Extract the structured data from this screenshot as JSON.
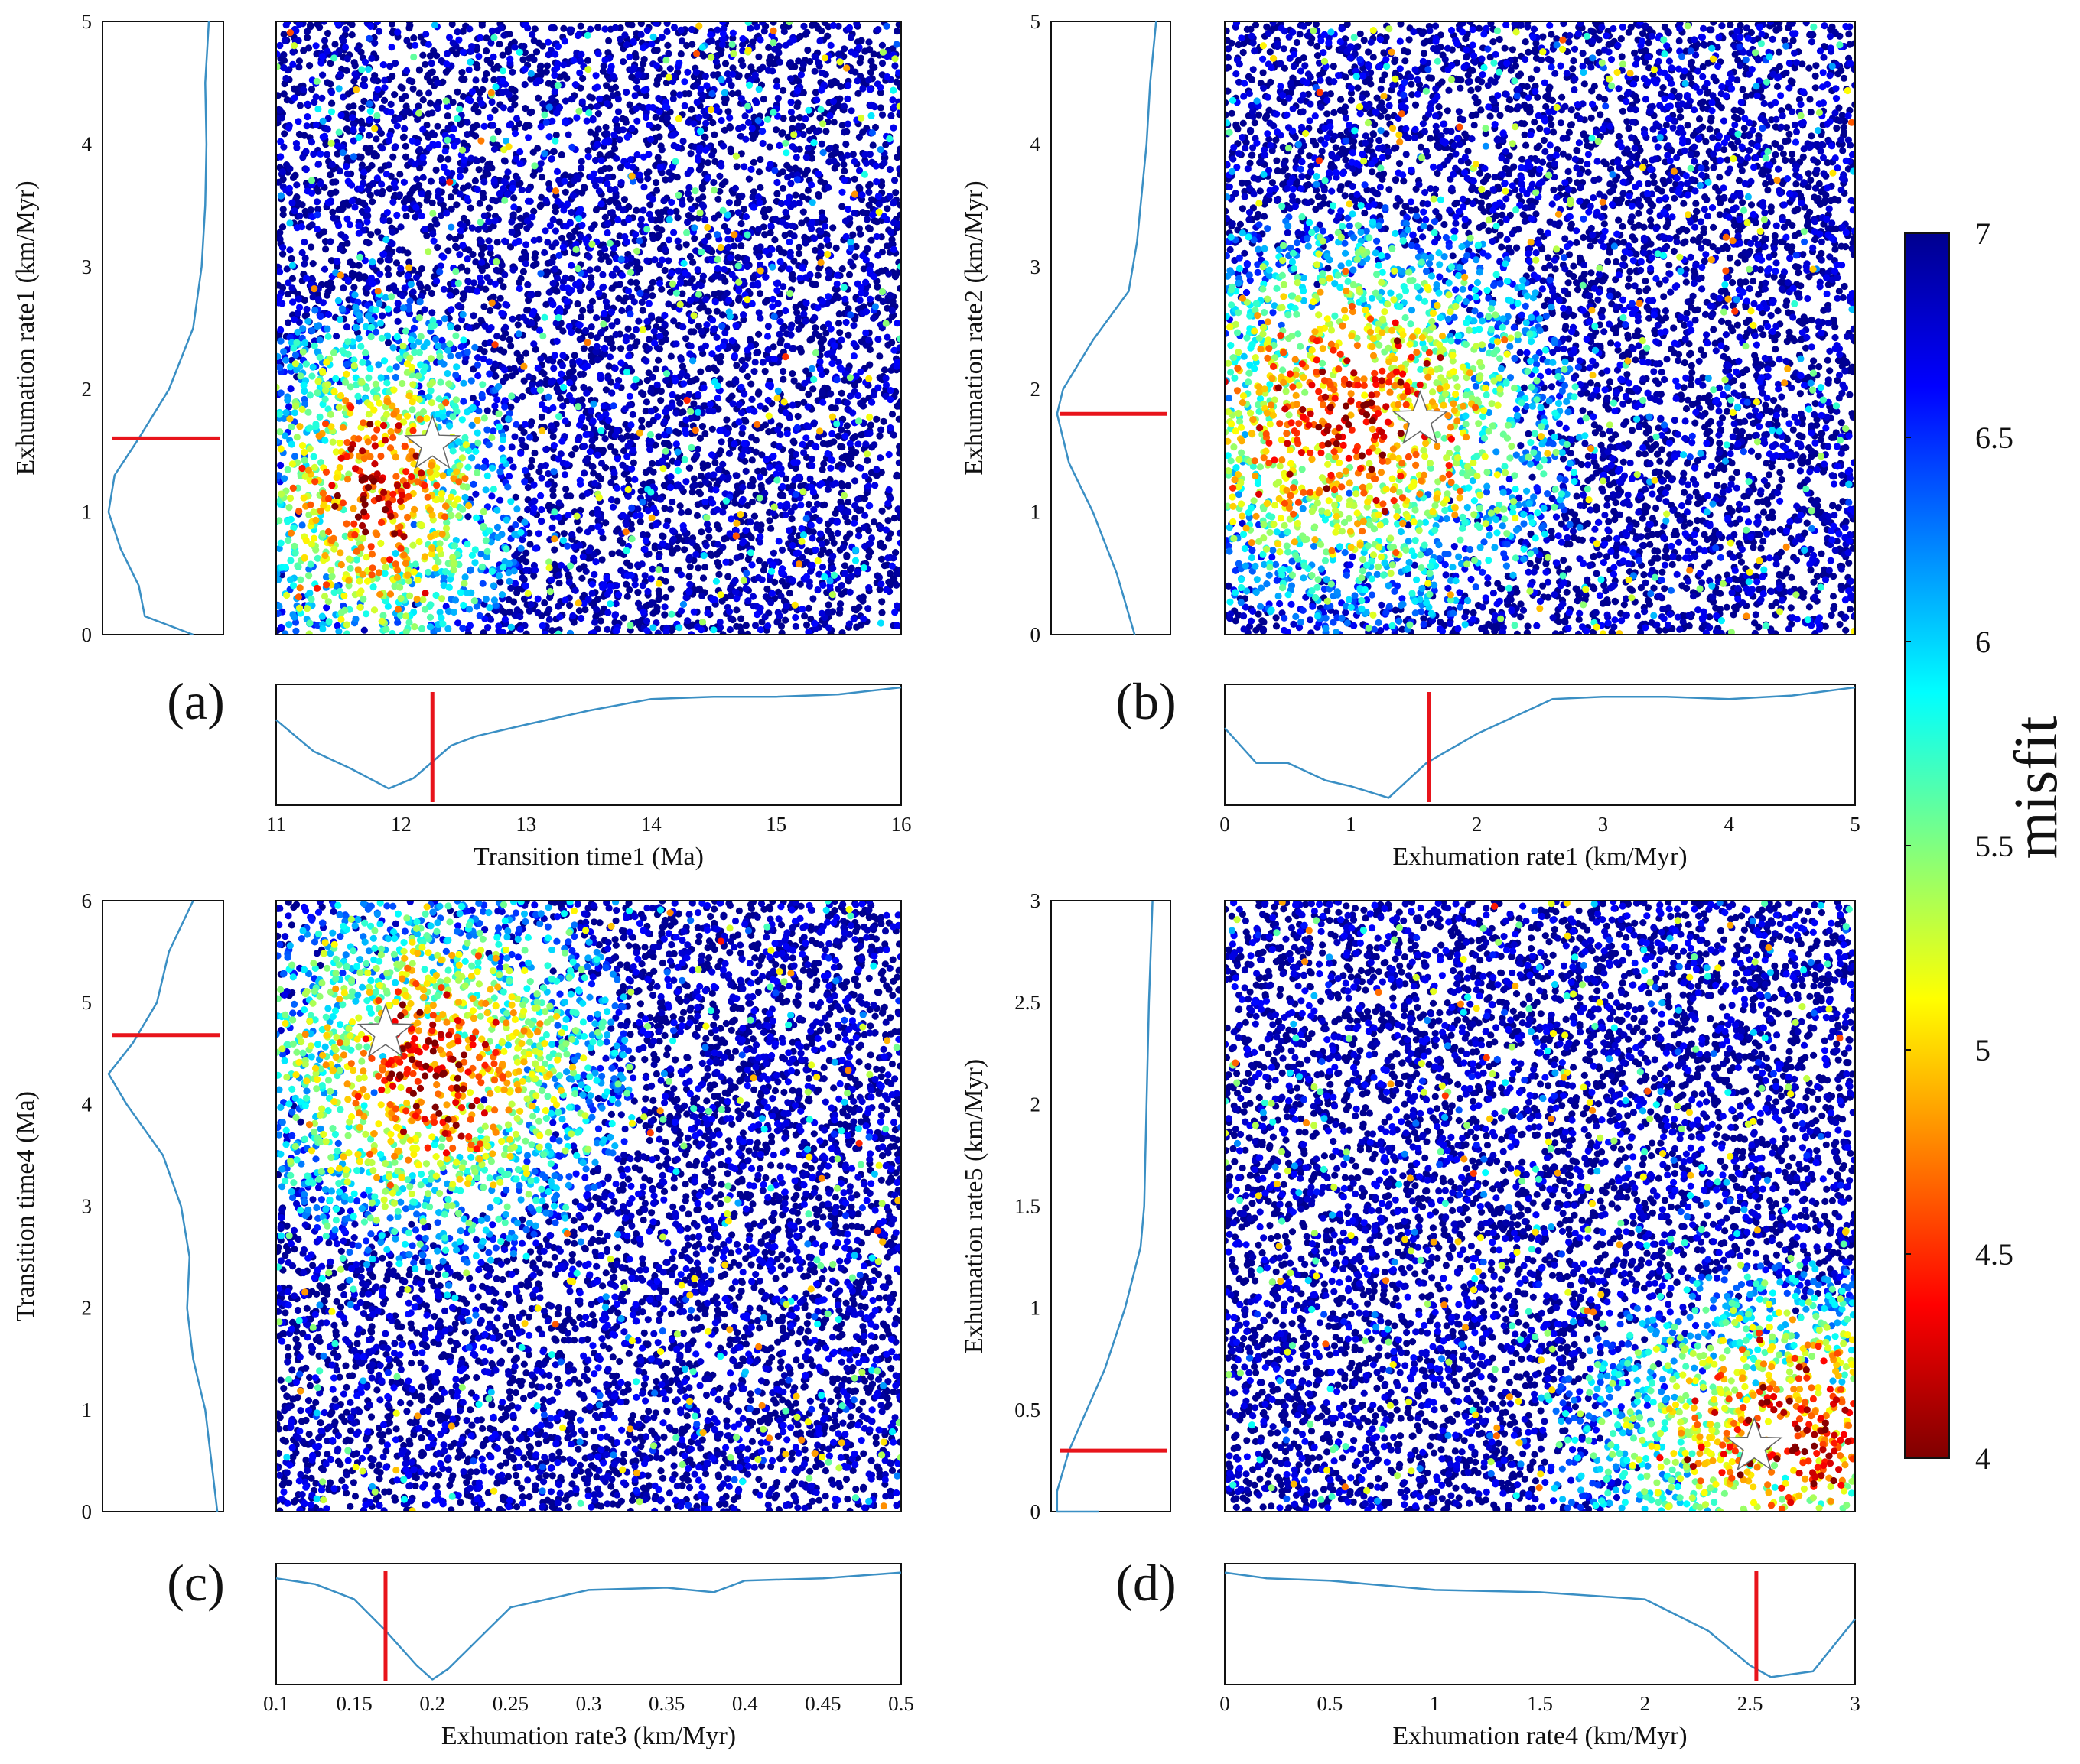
{
  "figure": {
    "colorbar": {
      "label": "misfit",
      "min": 4,
      "max": 7,
      "ticks": [
        "4",
        "4.5",
        "5",
        "5.5",
        "6",
        "6.5",
        "7"
      ],
      "colors": [
        "#7f0000",
        "#ff0000",
        "#ff8000",
        "#ffff00",
        "#80ff80",
        "#00ffff",
        "#0080ff",
        "#0000ff",
        "#00008f"
      ]
    },
    "line_color": "#3a8fc4",
    "marker_color": "#e8141b"
  },
  "chart_data": [
    {
      "panel": "(a)",
      "type": "scatter",
      "xlabel": "Transition  time1 (Ma)",
      "ylabel": "Exhumation rate1 (km/Myr)",
      "xlim": [
        11,
        16
      ],
      "ylim": [
        0,
        5
      ],
      "xticks": [
        "11",
        "12",
        "13",
        "14",
        "15",
        "16"
      ],
      "yticks": [
        "0",
        "1",
        "2",
        "3",
        "4",
        "5"
      ],
      "best": {
        "x": 12.25,
        "y": 1.55
      },
      "cluster": {
        "cx": 11.8,
        "cy": 1.15,
        "sx": 0.55,
        "sy": 0.75
      },
      "x_marginal": {
        "x": [
          11,
          11.3,
          11.6,
          11.9,
          12.1,
          12.4,
          12.6,
          13,
          13.5,
          14,
          14.5,
          15,
          15.5,
          16
        ],
        "y": [
          0.72,
          0.45,
          0.3,
          0.13,
          0.22,
          0.5,
          0.58,
          0.68,
          0.8,
          0.9,
          0.92,
          0.92,
          0.94,
          1.0
        ],
        "best": 12.25
      },
      "y_marginal": {
        "y": [
          0,
          0.15,
          0.4,
          0.7,
          1.0,
          1.3,
          1.6,
          2.0,
          2.5,
          3.0,
          3.5,
          4.0,
          4.5,
          5.0
        ],
        "v": [
          0.75,
          0.35,
          0.3,
          0.15,
          0.05,
          0.1,
          0.3,
          0.55,
          0.75,
          0.82,
          0.85,
          0.86,
          0.85,
          0.88
        ],
        "best": 1.6
      }
    },
    {
      "panel": "(b)",
      "type": "scatter",
      "xlabel": "Exhumation rate1 (km/Myr)",
      "ylabel": "Exhumation rate2 (km/Myr)",
      "xlim": [
        0,
        5
      ],
      "ylim": [
        0,
        5
      ],
      "xticks": [
        "0",
        "1",
        "2",
        "3",
        "4",
        "5"
      ],
      "yticks": [
        "0",
        "1",
        "2",
        "3",
        "4",
        "5"
      ],
      "best": {
        "x": 1.55,
        "y": 1.75
      },
      "cluster": {
        "cx": 1.0,
        "cy": 1.75,
        "sx": 0.85,
        "sy": 0.8
      },
      "x_marginal": {
        "x": [
          0,
          0.25,
          0.5,
          0.8,
          1.0,
          1.3,
          1.6,
          2.0,
          2.6,
          3.0,
          3.5,
          4.0,
          4.5,
          5.0
        ],
        "y": [
          0.65,
          0.35,
          0.35,
          0.2,
          0.15,
          0.05,
          0.35,
          0.6,
          0.9,
          0.92,
          0.92,
          0.9,
          0.93,
          1.0
        ],
        "best": 1.62
      },
      "y_marginal": {
        "y": [
          0,
          0.5,
          1.0,
          1.4,
          1.8,
          2.0,
          2.4,
          2.8,
          3.2,
          4.0,
          4.5,
          5.0
        ],
        "v": [
          0.7,
          0.55,
          0.35,
          0.15,
          0.05,
          0.1,
          0.35,
          0.65,
          0.72,
          0.8,
          0.83,
          0.88
        ],
        "best": 1.8
      }
    },
    {
      "panel": "(c)",
      "type": "scatter",
      "xlabel": "Exhumation rate3 (km/Myr)",
      "ylabel": "Transition  time4 (Ma)",
      "xlim": [
        0.1,
        0.5
      ],
      "ylim": [
        0,
        6
      ],
      "xticks": [
        "0.1",
        "0.15",
        "0.2",
        "0.25",
        "0.3",
        "0.35",
        "0.4",
        "0.45",
        "0.5"
      ],
      "yticks": [
        "0",
        "1",
        "2",
        "3",
        "4",
        "5",
        "6"
      ],
      "best": {
        "x": 0.17,
        "y": 4.7
      },
      "cluster": {
        "cx": 0.2,
        "cy": 4.35,
        "sx": 0.06,
        "sy": 0.9
      },
      "x_marginal": {
        "x": [
          0.1,
          0.125,
          0.15,
          0.17,
          0.19,
          0.2,
          0.21,
          0.25,
          0.3,
          0.35,
          0.38,
          0.4,
          0.45,
          0.5
        ],
        "y": [
          0.9,
          0.85,
          0.72,
          0.45,
          0.15,
          0.03,
          0.12,
          0.65,
          0.8,
          0.82,
          0.78,
          0.88,
          0.9,
          0.95
        ],
        "best": 0.17
      },
      "y_marginal": {
        "y": [
          0,
          0.5,
          1.0,
          1.5,
          2.0,
          2.5,
          3.0,
          3.5,
          4.0,
          4.3,
          4.6,
          5.0,
          5.5,
          6.0
        ],
        "v": [
          0.95,
          0.9,
          0.85,
          0.75,
          0.7,
          0.72,
          0.65,
          0.5,
          0.2,
          0.05,
          0.25,
          0.45,
          0.55,
          0.75
        ],
        "best": 4.68
      }
    },
    {
      "panel": "(d)",
      "type": "scatter",
      "xlabel": "Exhumation rate4 (km/Myr)",
      "ylabel": "Exhumation rate5 (km/Myr)",
      "xlim": [
        0,
        3
      ],
      "ylim": [
        0,
        3
      ],
      "xticks": [
        "0",
        "0.5",
        "1",
        "1.5",
        "2",
        "2.5",
        "3"
      ],
      "yticks": [
        "0",
        "0.5",
        "1",
        "1.5",
        "2",
        "2.5",
        "3"
      ],
      "best": {
        "x": 2.52,
        "y": 0.32
      },
      "cluster": {
        "cx": 2.75,
        "cy": 0.35,
        "sx": 0.55,
        "sy": 0.4
      },
      "x_marginal": {
        "x": [
          0,
          0.2,
          0.5,
          1.0,
          1.5,
          2.0,
          2.3,
          2.5,
          2.6,
          2.8,
          3.0
        ],
        "y": [
          0.95,
          0.9,
          0.88,
          0.8,
          0.78,
          0.72,
          0.45,
          0.15,
          0.05,
          0.1,
          0.55
        ],
        "best": 2.53
      },
      "y_marginal": {
        "y": [
          -0.05,
          0.0,
          0.1,
          0.3,
          0.5,
          0.7,
          1.0,
          1.3,
          1.5,
          2.0,
          2.5,
          3.0
        ],
        "v": [
          0.4,
          0.05,
          0.05,
          0.15,
          0.3,
          0.45,
          0.62,
          0.75,
          0.78,
          0.8,
          0.82,
          0.85
        ],
        "best": 0.3
      }
    }
  ]
}
